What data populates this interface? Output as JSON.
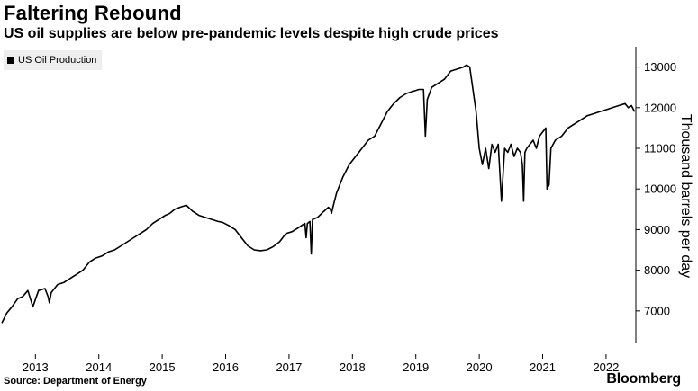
{
  "header": {
    "title": "Faltering Rebound",
    "subtitle": "US oil supplies are below pre-pandemic levels despite high crude prices"
  },
  "footer": {
    "source": "Source: Department of Energy",
    "brand": "Bloomberg"
  },
  "colors": {
    "line": "#000000",
    "legend_bg": "#eeeeee",
    "axis": "#000000"
  },
  "chart_data": {
    "type": "line",
    "title": "Faltering Rebound",
    "subtitle": "US oil supplies are below pre-pandemic levels despite high crude prices",
    "xlabel": "",
    "ylabel": "Thousand barrels per day",
    "xlim": [
      2012.47,
      2022.47
    ],
    "ylim": [
      6200,
      13500
    ],
    "y_ticks": [
      7000,
      8000,
      9000,
      10000,
      11000,
      12000,
      13000
    ],
    "y_tick_labels": [
      "7000",
      "8000",
      "9000",
      "10000",
      "11000",
      "12000",
      "13000"
    ],
    "x_ticks": [
      2013,
      2014,
      2015,
      2016,
      2017,
      2018,
      2019,
      2020,
      2021,
      2022
    ],
    "x_tick_labels": [
      "2013",
      "2014",
      "2015",
      "2016",
      "2017",
      "2018",
      "2019",
      "2020",
      "2021",
      "2022"
    ],
    "legend": [
      "US Oil Production"
    ],
    "legend_position": "top-left",
    "grid": false,
    "series": [
      {
        "name": "US Oil Production",
        "x": [
          2012.47,
          2012.55,
          2012.63,
          2012.72,
          2012.8,
          2012.88,
          2012.96,
          2013.05,
          2013.15,
          2013.2,
          2013.22,
          2013.25,
          2013.35,
          2013.45,
          2013.55,
          2013.65,
          2013.75,
          2013.85,
          2013.95,
          2014.05,
          2014.15,
          2014.25,
          2014.35,
          2014.45,
          2014.55,
          2014.65,
          2014.75,
          2014.85,
          2014.95,
          2015.05,
          2015.12,
          2015.2,
          2015.28,
          2015.38,
          2015.48,
          2015.58,
          2015.68,
          2015.78,
          2015.88,
          2015.95,
          2016.05,
          2016.15,
          2016.25,
          2016.35,
          2016.45,
          2016.55,
          2016.65,
          2016.75,
          2016.85,
          2016.95,
          2017.05,
          2017.15,
          2017.25,
          2017.27,
          2017.29,
          2017.33,
          2017.35,
          2017.37,
          2017.45,
          2017.55,
          2017.62,
          2017.65,
          2017.67,
          2017.7,
          2017.75,
          2017.85,
          2017.95,
          2018.05,
          2018.15,
          2018.25,
          2018.35,
          2018.45,
          2018.55,
          2018.65,
          2018.75,
          2018.85,
          2018.95,
          2019.05,
          2019.12,
          2019.15,
          2019.18,
          2019.25,
          2019.35,
          2019.45,
          2019.55,
          2019.65,
          2019.75,
          2019.8,
          2019.85,
          2019.95,
          2020.0,
          2020.05,
          2020.1,
          2020.15,
          2020.2,
          2020.25,
          2020.3,
          2020.35,
          2020.4,
          2020.45,
          2020.5,
          2020.55,
          2020.6,
          2020.65,
          2020.68,
          2020.7,
          2020.72,
          2020.75,
          2020.8,
          2020.85,
          2020.9,
          2020.95,
          2021.0,
          2021.05,
          2021.07,
          2021.1,
          2021.13,
          2021.2,
          2021.3,
          2021.4,
          2021.5,
          2021.6,
          2021.7,
          2021.8,
          2021.9,
          2022.0,
          2022.1,
          2022.2,
          2022.3,
          2022.35,
          2022.4,
          2022.45
        ],
        "values": [
          6700,
          6950,
          7100,
          7300,
          7350,
          7500,
          7100,
          7500,
          7550,
          7350,
          7200,
          7450,
          7650,
          7700,
          7800,
          7900,
          8000,
          8200,
          8300,
          8350,
          8450,
          8500,
          8600,
          8700,
          8800,
          8900,
          9000,
          9150,
          9250,
          9350,
          9400,
          9500,
          9550,
          9600,
          9450,
          9350,
          9300,
          9250,
          9200,
          9180,
          9100,
          9000,
          8800,
          8600,
          8500,
          8480,
          8500,
          8580,
          8700,
          8900,
          8950,
          9050,
          9150,
          8800,
          9150,
          9200,
          8400,
          9250,
          9300,
          9450,
          9550,
          9500,
          9400,
          9600,
          9900,
          10300,
          10600,
          10800,
          11000,
          11200,
          11300,
          11600,
          11900,
          12100,
          12250,
          12350,
          12400,
          12450,
          12450,
          11300,
          12200,
          12500,
          12600,
          12700,
          12900,
          12950,
          13000,
          13050,
          13000,
          11900,
          11000,
          10600,
          11000,
          10500,
          11100,
          10900,
          11100,
          9700,
          11000,
          10900,
          11100,
          10800,
          11000,
          10900,
          10600,
          9700,
          10900,
          11000,
          11100,
          11200,
          11000,
          11300,
          11400,
          11500,
          10000,
          10100,
          11000,
          11200,
          11300,
          11500,
          11600,
          11700,
          11800,
          11850,
          11900,
          11950,
          12000,
          12050,
          12100,
          12000,
          12050,
          11900
        ]
      }
    ]
  }
}
